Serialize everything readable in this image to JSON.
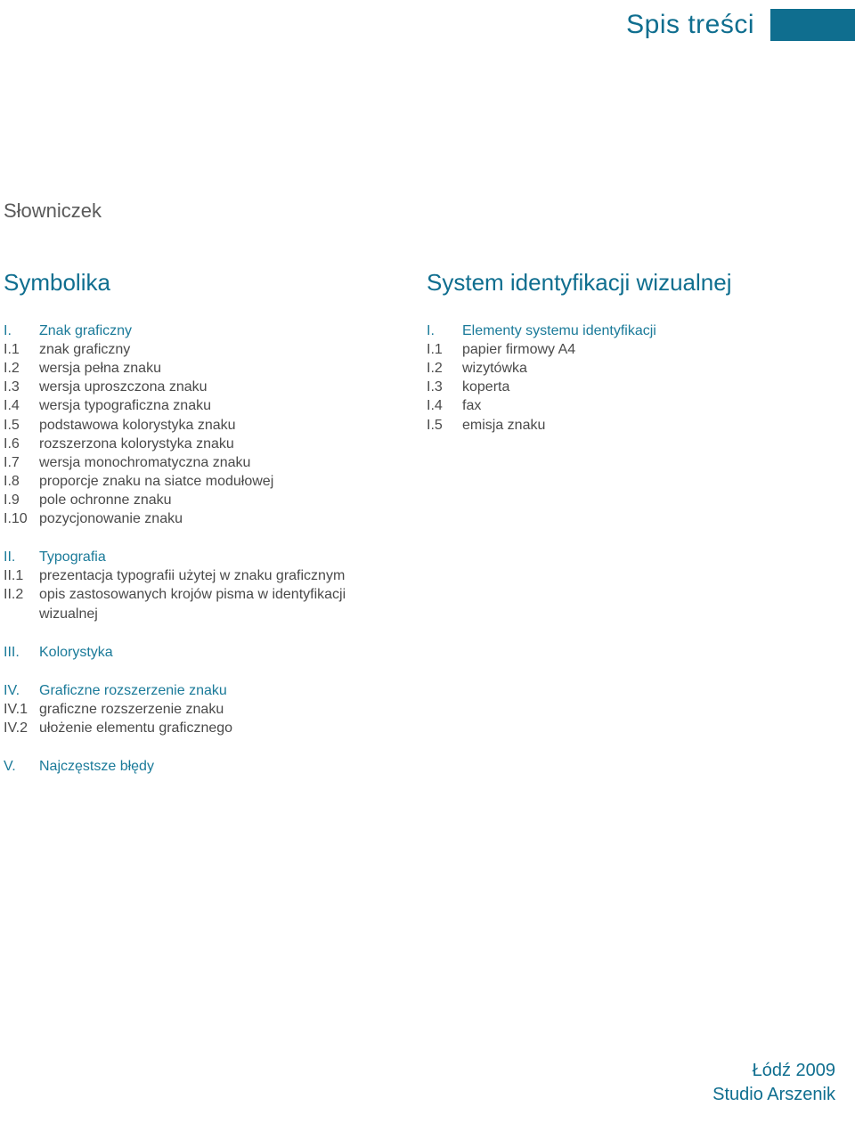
{
  "colors": {
    "accent": "#0f6e8f",
    "text": "#4a4a4a",
    "heading": "#1a7a99",
    "glossary": "#5a5a5a"
  },
  "header": {
    "title": "Spis treści"
  },
  "glossary": "Słowniczek",
  "left": {
    "title": "Symbolika",
    "sections": [
      {
        "heading": {
          "num": "I.",
          "text": "Znak graficzny"
        },
        "items": [
          {
            "num": "I.1",
            "text": "znak graficzny"
          },
          {
            "num": "I.2",
            "text": "wersja pełna znaku"
          },
          {
            "num": "I.3",
            "text": "wersja uproszczona znaku"
          },
          {
            "num": "I.4",
            "text": "wersja typograficzna znaku"
          },
          {
            "num": "I.5",
            "text": "podstawowa kolorystyka znaku"
          },
          {
            "num": "I.6",
            "text": "rozszerzona kolorystyka znaku"
          },
          {
            "num": "I.7",
            "text": "wersja monochromatyczna znaku"
          },
          {
            "num": "I.8",
            "text": "proporcje znaku na siatce modułowej"
          },
          {
            "num": "I.9",
            "text": "pole ochronne znaku"
          },
          {
            "num": "I.10",
            "text": "pozycjonowanie znaku"
          }
        ]
      },
      {
        "heading": {
          "num": "II.",
          "text": "Typografia"
        },
        "items": [
          {
            "num": "II.1",
            "text": "prezentacja typografii użytej w znaku graficznym"
          },
          {
            "num": "II.2",
            "text": "opis zastosowanych krojów pisma w identyfikacji wizualnej"
          }
        ]
      },
      {
        "heading": {
          "num": "III.",
          "text": "Kolorystyka"
        },
        "items": []
      },
      {
        "heading": {
          "num": "IV.",
          "text": "Graficzne rozszerzenie znaku"
        },
        "items": [
          {
            "num": "IV.1",
            "text": "graficzne rozszerzenie znaku"
          },
          {
            "num": "IV.2",
            "text": "ułożenie elementu graficznego"
          }
        ]
      },
      {
        "heading": {
          "num": "V.",
          "text": "Najczęstsze błędy"
        },
        "items": []
      }
    ]
  },
  "right": {
    "title": "System identyfikacji wizualnej",
    "sections": [
      {
        "heading": {
          "num": "I.",
          "text": "Elementy systemu identyfikacji"
        },
        "items": [
          {
            "num": "I.1",
            "text": "papier firmowy A4"
          },
          {
            "num": "I.2",
            "text": "wizytówka"
          },
          {
            "num": "I.3",
            "text": "koperta"
          },
          {
            "num": "I.4",
            "text": "fax"
          },
          {
            "num": "I.5",
            "text": "emisja znaku"
          }
        ]
      }
    ]
  },
  "footer": {
    "line1": "Łódź 2009",
    "line2": "Studio Arszenik"
  }
}
